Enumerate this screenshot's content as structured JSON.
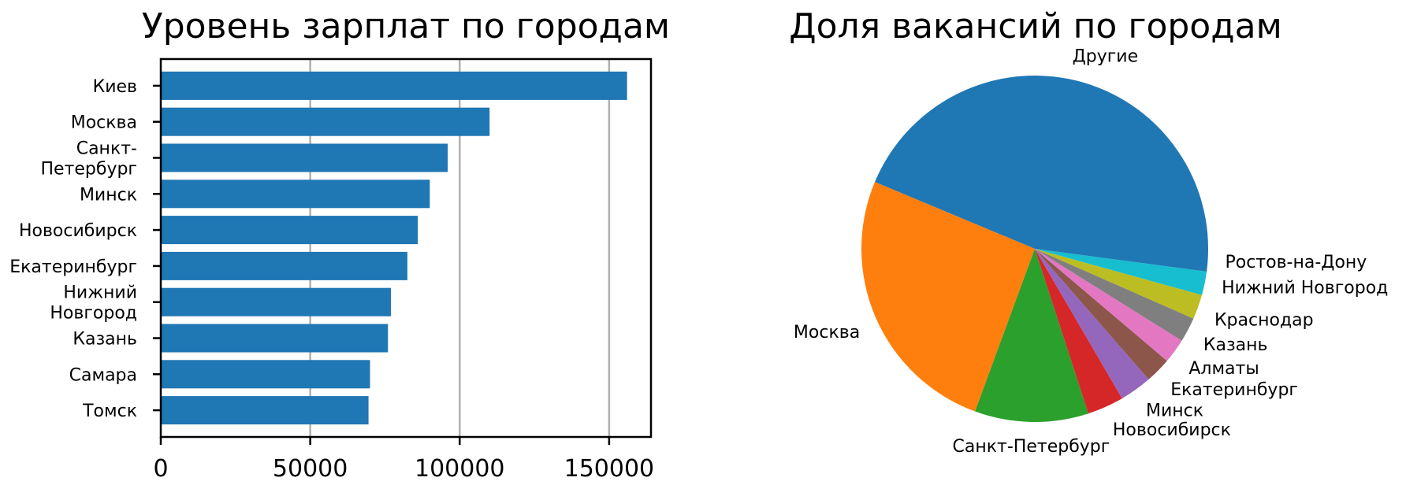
{
  "chart_data": [
    {
      "type": "bar",
      "orientation": "horizontal",
      "title": "Уровень зарплат по городам",
      "xlabel": "",
      "ylabel": "",
      "categories": [
        "Киев",
        "Москва",
        "Санкт-Петербург",
        "Минск",
        "Новосибирск",
        "Екатеринбург",
        "Нижний Новгород",
        "Казань",
        "Самара",
        "Томск"
      ],
      "tick_labels": [
        [
          "Киев"
        ],
        [
          "Москва"
        ],
        [
          "Санкт-",
          "Петербург"
        ],
        [
          "Минск"
        ],
        [
          "Новосибирск"
        ],
        [
          "Екатеринбург"
        ],
        [
          "Нижний",
          "Новгород"
        ],
        [
          "Казань"
        ],
        [
          "Самара"
        ],
        [
          "Томск"
        ]
      ],
      "values": [
        156000,
        110000,
        96000,
        90000,
        86000,
        82500,
        77000,
        76000,
        70000,
        69500
      ],
      "xlim": [
        0,
        164000
      ],
      "xticks": [
        0,
        50000,
        100000,
        150000
      ],
      "xtick_labels": [
        "0",
        "50000",
        "100000",
        "150000"
      ],
      "grid": "vertical",
      "bar_color": "#1f77b4",
      "grid_color": "#b0b0b0"
    },
    {
      "type": "pie",
      "title": "Доля вакансий по городам",
      "labels": [
        "Другие",
        "Москва",
        "Санкт-Петербург",
        "Новосибирск",
        "Минск",
        "Екатеринбург",
        "Алматы",
        "Казань",
        "Краснодар",
        "Нижний Новгород",
        "Ростов-на-Дону"
      ],
      "values": [
        43.7,
        25.7,
        10.6,
        3.4,
        3.0,
        2.4,
        2.3,
        2.3,
        2.3,
        2.2,
        2.1
      ],
      "colors": [
        "#1f77b4",
        "#ff7f0e",
        "#2ca02c",
        "#d62728",
        "#9467bd",
        "#8c564b",
        "#e377c2",
        "#7f7f7f",
        "#bcbd22",
        "#17becf",
        "#1f77b4"
      ]
    }
  ]
}
